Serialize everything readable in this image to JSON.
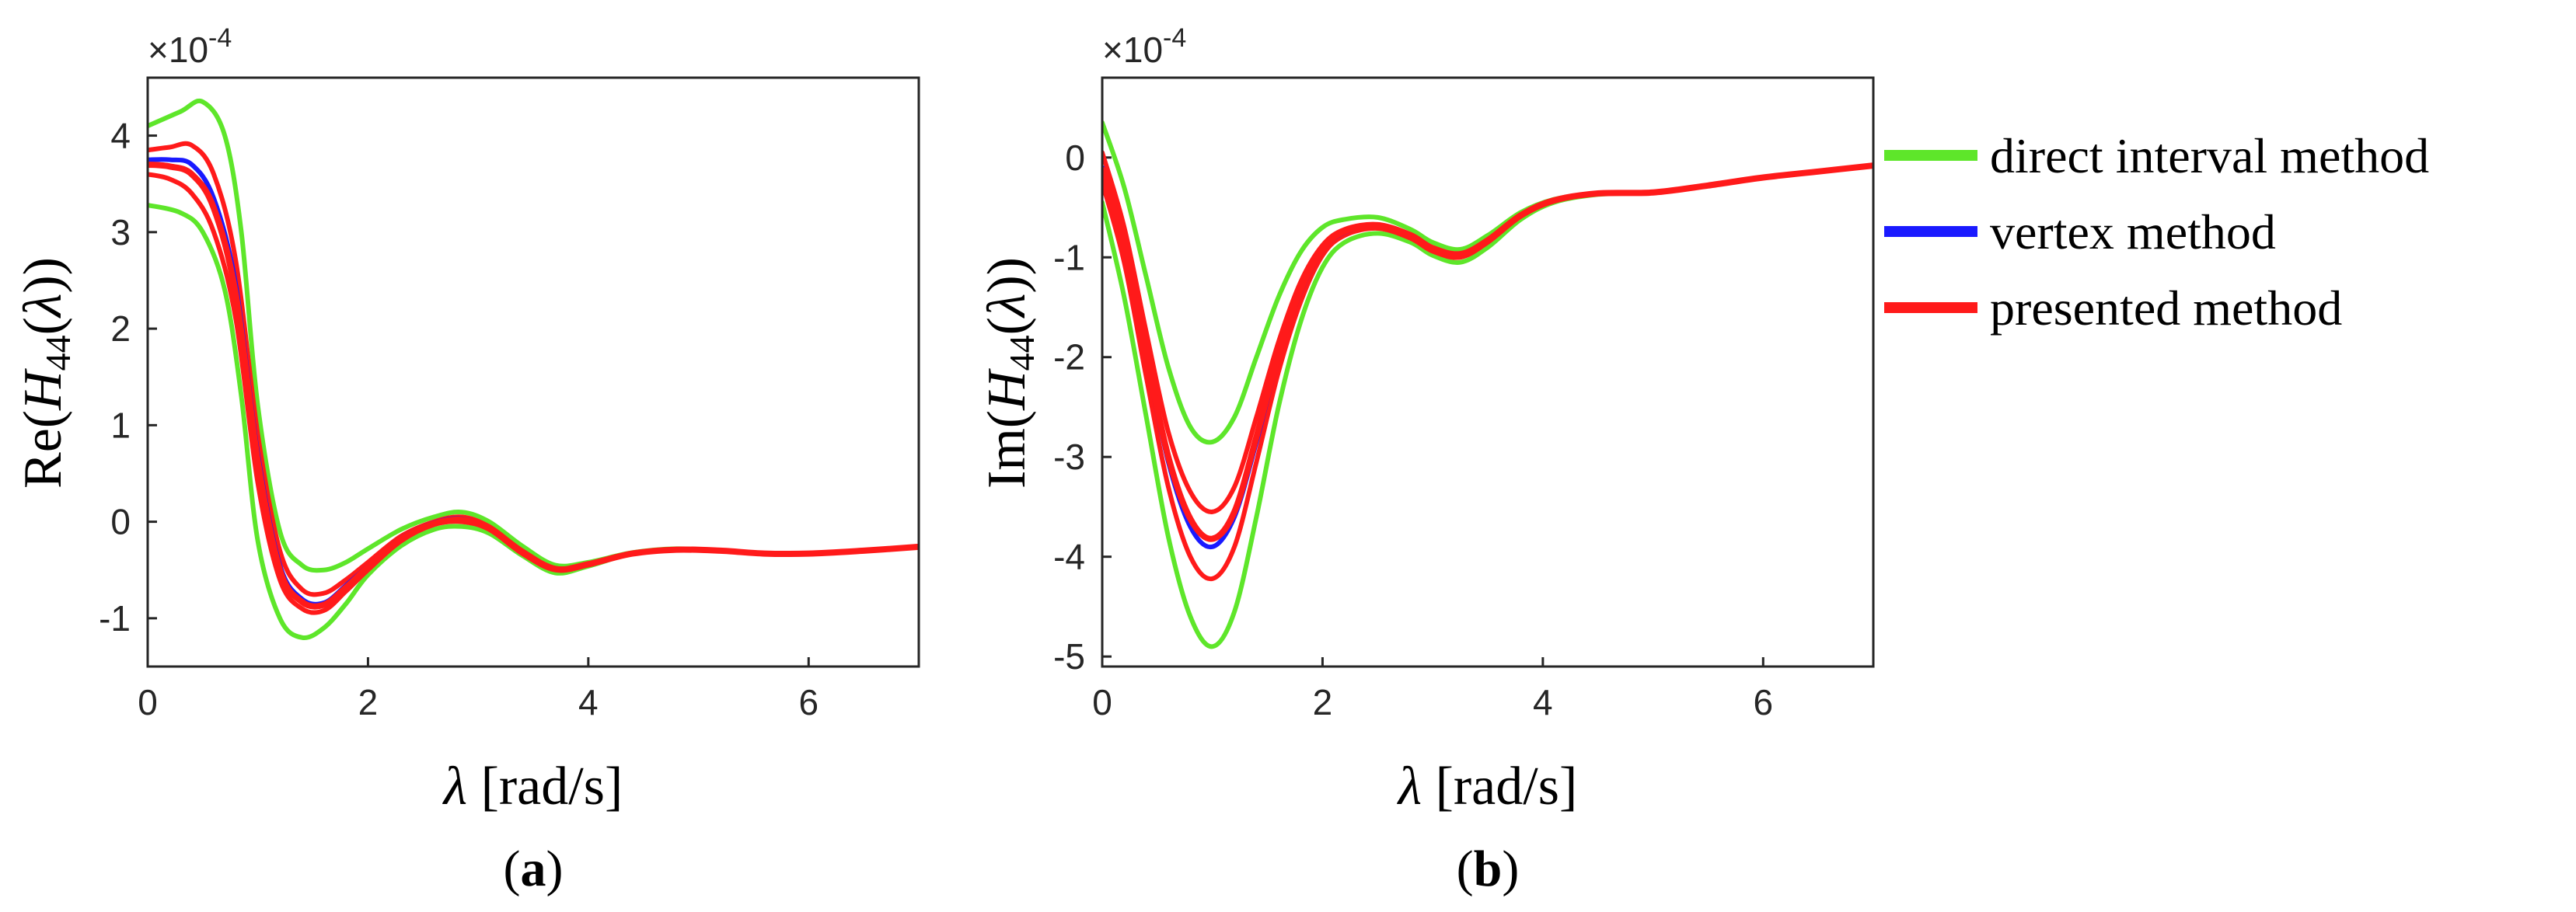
{
  "chart_data": [
    {
      "type": "line",
      "panel_label": "a",
      "exponent_label": "×10",
      "exponent_power": "-4",
      "ylabel": "Re(H44(λ))",
      "ylabel_parts": {
        "prefix": "Re(",
        "symbol": "H",
        "subscript": "44",
        "arg_open": "(",
        "arg": "λ",
        "suffix": "))"
      },
      "xlabel": "λ [rad/s]",
      "xlabel_parts": {
        "symbol": "λ",
        "unit": " [rad/s]"
      },
      "xlim": [
        0,
        7
      ],
      "ylim": [
        -1.5,
        4.6
      ],
      "xticks": [
        0,
        2,
        4,
        6
      ],
      "yticks": [
        -1,
        0,
        1,
        2,
        3,
        4
      ],
      "series": [
        {
          "group": "direct interval method",
          "color": "#5ee62a",
          "width": 6,
          "x": [
            0,
            0.3,
            0.5,
            0.7,
            0.85,
            1.0,
            1.2,
            1.4,
            1.6,
            1.8,
            2.0,
            2.3,
            2.6,
            2.85,
            3.1,
            3.4,
            3.7,
            4.0,
            4.4,
            4.8,
            5.2,
            5.6,
            6.0,
            6.5,
            7.0
          ],
          "y": [
            4.1,
            4.25,
            4.35,
            4.0,
            3.0,
            1.2,
            -0.1,
            -0.45,
            -0.5,
            -0.42,
            -0.28,
            -0.08,
            0.05,
            0.1,
            0.0,
            -0.25,
            -0.45,
            -0.42,
            -0.32,
            -0.28,
            -0.3,
            -0.33,
            -0.33,
            -0.3,
            -0.26
          ]
        },
        {
          "group": "direct interval method",
          "color": "#5ee62a",
          "width": 6,
          "x": [
            0,
            0.3,
            0.5,
            0.7,
            0.85,
            1.0,
            1.2,
            1.4,
            1.6,
            1.8,
            2.0,
            2.3,
            2.6,
            2.85,
            3.1,
            3.4,
            3.7,
            4.0,
            4.4,
            4.8,
            5.2,
            5.6,
            6.0,
            6.5,
            7.0
          ],
          "y": [
            3.28,
            3.2,
            3.0,
            2.4,
            1.3,
            -0.2,
            -1.0,
            -1.2,
            -1.1,
            -0.85,
            -0.55,
            -0.25,
            -0.08,
            -0.05,
            -0.12,
            -0.35,
            -0.53,
            -0.46,
            -0.33,
            -0.29,
            -0.3,
            -0.33,
            -0.33,
            -0.3,
            -0.26
          ]
        },
        {
          "group": "presented method",
          "color": "#ff1a1a",
          "width": 6,
          "x": [
            0,
            0.2,
            0.4,
            0.6,
            0.8,
            1.0,
            1.2,
            1.4,
            1.6,
            1.8,
            2.0,
            2.3,
            2.6,
            2.85,
            3.1,
            3.4,
            3.7,
            4.0,
            4.4,
            4.8,
            5.2,
            5.6,
            6.0,
            6.5,
            7.0
          ],
          "y": [
            3.85,
            3.88,
            3.9,
            3.6,
            2.7,
            0.9,
            -0.3,
            -0.7,
            -0.74,
            -0.6,
            -0.42,
            -0.15,
            0.0,
            0.05,
            -0.05,
            -0.3,
            -0.48,
            -0.44,
            -0.33,
            -0.29,
            -0.3,
            -0.33,
            -0.33,
            -0.3,
            -0.26
          ]
        },
        {
          "group": "presented method",
          "color": "#ff1a1a",
          "width": 6,
          "x": [
            0,
            0.2,
            0.4,
            0.6,
            0.8,
            1.0,
            1.2,
            1.4,
            1.6,
            1.8,
            2.0,
            2.3,
            2.6,
            2.85,
            3.1,
            3.4,
            3.7,
            4.0,
            4.4,
            4.8,
            5.2,
            5.6,
            6.0,
            6.5,
            7.0
          ],
          "y": [
            3.6,
            3.55,
            3.4,
            3.0,
            2.1,
            0.4,
            -0.6,
            -0.9,
            -0.92,
            -0.72,
            -0.5,
            -0.2,
            -0.03,
            0.0,
            -0.08,
            -0.33,
            -0.5,
            -0.45,
            -0.33,
            -0.29,
            -0.3,
            -0.33,
            -0.33,
            -0.3,
            -0.26
          ]
        },
        {
          "group": "vertex method",
          "color": "#1a1aff",
          "width": 6,
          "x": [
            0,
            0.2,
            0.4,
            0.6,
            0.8,
            1.0,
            1.2,
            1.4,
            1.6,
            1.8,
            2.0,
            2.3,
            2.6,
            2.85,
            3.1,
            3.4,
            3.7,
            4.0,
            4.4,
            4.8,
            5.2,
            5.6,
            6.0,
            6.5,
            7.0
          ],
          "y": [
            3.75,
            3.75,
            3.7,
            3.35,
            2.45,
            0.7,
            -0.45,
            -0.8,
            -0.84,
            -0.66,
            -0.46,
            -0.17,
            -0.01,
            0.03,
            -0.07,
            -0.31,
            -0.49,
            -0.44,
            -0.33,
            -0.29,
            -0.3,
            -0.33,
            -0.33,
            -0.3,
            -0.26
          ]
        },
        {
          "group": "presented method",
          "color": "#ff1a1a",
          "width": 8,
          "x": [
            0,
            0.2,
            0.4,
            0.6,
            0.8,
            1.0,
            1.2,
            1.4,
            1.6,
            1.8,
            2.0,
            2.3,
            2.6,
            2.85,
            3.1,
            3.4,
            3.7,
            4.0,
            4.4,
            4.8,
            5.2,
            5.6,
            6.0,
            6.5,
            7.0
          ],
          "y": [
            3.7,
            3.68,
            3.6,
            3.25,
            2.35,
            0.62,
            -0.5,
            -0.83,
            -0.86,
            -0.68,
            -0.47,
            -0.18,
            -0.02,
            0.02,
            -0.07,
            -0.31,
            -0.49,
            -0.44,
            -0.33,
            -0.29,
            -0.3,
            -0.33,
            -0.33,
            -0.3,
            -0.26
          ]
        }
      ]
    },
    {
      "type": "line",
      "panel_label": "b",
      "exponent_label": "×10",
      "exponent_power": "-4",
      "ylabel": "Im(H44(λ))",
      "ylabel_parts": {
        "prefix": "Im(",
        "symbol": "H",
        "subscript": "44",
        "arg_open": "(",
        "arg": "λ",
        "suffix": "))"
      },
      "xlabel": "λ [rad/s]",
      "xlabel_parts": {
        "symbol": "λ",
        "unit": " [rad/s]"
      },
      "xlim": [
        0,
        7
      ],
      "ylim": [
        -5.1,
        0.8
      ],
      "xticks": [
        0,
        2,
        4,
        6
      ],
      "yticks": [
        -5,
        -4,
        -3,
        -2,
        -1,
        0
      ],
      "series": [
        {
          "group": "direct interval method",
          "color": "#5ee62a",
          "width": 6,
          "x": [
            0,
            0.2,
            0.4,
            0.6,
            0.8,
            1.0,
            1.2,
            1.4,
            1.6,
            1.8,
            2.0,
            2.2,
            2.5,
            2.8,
            3.0,
            3.25,
            3.5,
            3.8,
            4.1,
            4.5,
            5.0,
            5.5,
            6.0,
            6.5,
            7.0
          ],
          "y": [
            0.35,
            -0.3,
            -1.2,
            -2.1,
            -2.7,
            -2.85,
            -2.6,
            -2.0,
            -1.4,
            -0.95,
            -0.7,
            -0.62,
            -0.6,
            -0.72,
            -0.85,
            -0.92,
            -0.78,
            -0.55,
            -0.42,
            -0.36,
            -0.35,
            -0.28,
            -0.2,
            -0.14,
            -0.08
          ]
        },
        {
          "group": "direct interval method",
          "color": "#5ee62a",
          "width": 6,
          "x": [
            0,
            0.2,
            0.4,
            0.6,
            0.8,
            1.0,
            1.2,
            1.4,
            1.6,
            1.8,
            2.0,
            2.2,
            2.5,
            2.8,
            3.0,
            3.25,
            3.5,
            3.8,
            4.1,
            4.5,
            5.0,
            5.5,
            6.0,
            6.5,
            7.0
          ],
          "y": [
            -0.45,
            -1.4,
            -2.6,
            -3.8,
            -4.6,
            -4.9,
            -4.55,
            -3.6,
            -2.5,
            -1.65,
            -1.1,
            -0.85,
            -0.76,
            -0.85,
            -0.98,
            -1.05,
            -0.9,
            -0.62,
            -0.45,
            -0.37,
            -0.35,
            -0.28,
            -0.2,
            -0.14,
            -0.08
          ]
        },
        {
          "group": "presented method",
          "color": "#ff1a1a",
          "width": 6,
          "x": [
            0,
            0.2,
            0.4,
            0.6,
            0.8,
            1.0,
            1.2,
            1.4,
            1.6,
            1.8,
            2.0,
            2.2,
            2.5,
            2.8,
            3.0,
            3.25,
            3.5,
            3.8,
            4.1,
            4.5,
            5.0,
            5.5,
            6.0,
            6.5,
            7.0
          ],
          "y": [
            0.05,
            -0.7,
            -1.75,
            -2.75,
            -3.35,
            -3.55,
            -3.3,
            -2.6,
            -1.85,
            -1.25,
            -0.88,
            -0.72,
            -0.67,
            -0.77,
            -0.9,
            -0.96,
            -0.82,
            -0.57,
            -0.43,
            -0.36,
            -0.35,
            -0.28,
            -0.2,
            -0.14,
            -0.08
          ]
        },
        {
          "group": "presented method",
          "color": "#ff1a1a",
          "width": 6,
          "x": [
            0,
            0.2,
            0.4,
            0.6,
            0.8,
            1.0,
            1.2,
            1.4,
            1.6,
            1.8,
            2.0,
            2.2,
            2.5,
            2.8,
            3.0,
            3.25,
            3.5,
            3.8,
            4.1,
            4.5,
            5.0,
            5.5,
            6.0,
            6.5,
            7.0
          ],
          "y": [
            -0.25,
            -1.05,
            -2.2,
            -3.3,
            -4.0,
            -4.22,
            -3.9,
            -3.05,
            -2.15,
            -1.45,
            -0.98,
            -0.78,
            -0.71,
            -0.81,
            -0.94,
            -1.0,
            -0.85,
            -0.59,
            -0.44,
            -0.36,
            -0.35,
            -0.28,
            -0.2,
            -0.14,
            -0.08
          ]
        },
        {
          "group": "vertex method",
          "color": "#1a1aff",
          "width": 6,
          "x": [
            0,
            0.2,
            0.4,
            0.6,
            0.8,
            1.0,
            1.2,
            1.4,
            1.6,
            1.8,
            2.0,
            2.2,
            2.5,
            2.8,
            3.0,
            3.25,
            3.5,
            3.8,
            4.1,
            4.5,
            5.0,
            5.5,
            6.0,
            6.5,
            7.0
          ],
          "y": [
            -0.1,
            -0.9,
            -2.0,
            -3.05,
            -3.7,
            -3.9,
            -3.6,
            -2.85,
            -2.0,
            -1.35,
            -0.93,
            -0.75,
            -0.69,
            -0.79,
            -0.92,
            -0.98,
            -0.83,
            -0.58,
            -0.43,
            -0.36,
            -0.35,
            -0.28,
            -0.2,
            -0.14,
            -0.08
          ]
        },
        {
          "group": "presented method",
          "color": "#ff1a1a",
          "width": 8,
          "x": [
            0,
            0.2,
            0.4,
            0.6,
            0.8,
            1.0,
            1.2,
            1.4,
            1.6,
            1.8,
            2.0,
            2.2,
            2.5,
            2.8,
            3.0,
            3.25,
            3.5,
            3.8,
            4.1,
            4.5,
            5.0,
            5.5,
            6.0,
            6.5,
            7.0
          ],
          "y": [
            -0.12,
            -0.88,
            -1.98,
            -3.0,
            -3.62,
            -3.82,
            -3.55,
            -2.8,
            -1.98,
            -1.33,
            -0.92,
            -0.74,
            -0.69,
            -0.79,
            -0.92,
            -0.98,
            -0.83,
            -0.58,
            -0.43,
            -0.36,
            -0.35,
            -0.28,
            -0.2,
            -0.14,
            -0.08
          ]
        }
      ]
    }
  ],
  "legend": {
    "items": [
      {
        "label": "direct interval method",
        "color": "#5ee62a"
      },
      {
        "label": "vertex method",
        "color": "#1a1aff"
      },
      {
        "label": "presented method",
        "color": "#ff1a1a"
      }
    ]
  }
}
